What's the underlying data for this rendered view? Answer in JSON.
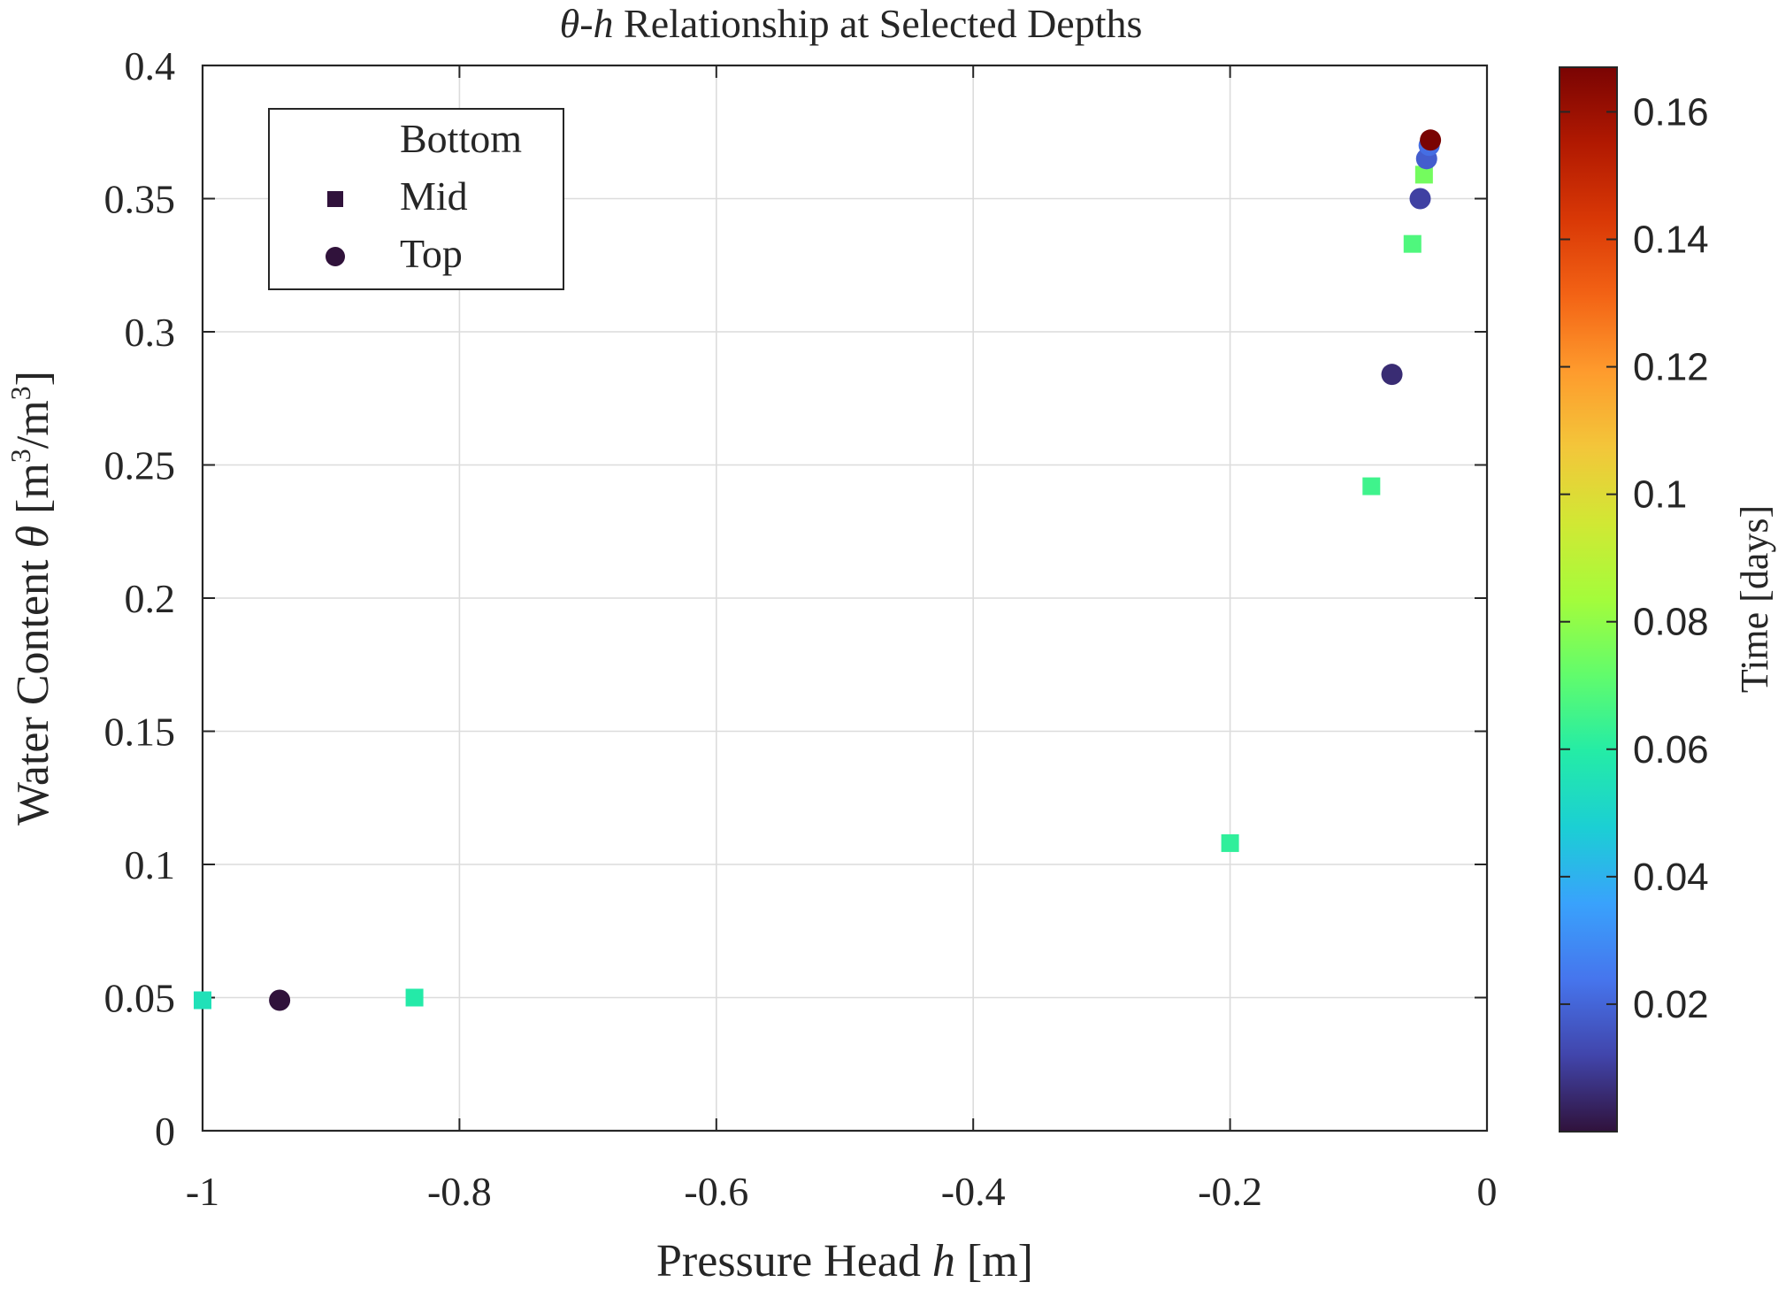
{
  "chart_data": {
    "type": "scatter",
    "title_parts": {
      "theta": "θ",
      "dash": "-",
      "h": "h",
      "rest": " Relationship at Selected Depths"
    },
    "xlabel": {
      "before": "Pressure Head ",
      "var": "h",
      "after": " [m]"
    },
    "ylabel": {
      "before": "Water Content ",
      "var": "θ",
      "unit_pre": " [m",
      "sup1": "3",
      "slash": "/m",
      "sup2": "3",
      "close": "]"
    },
    "xlim": [
      -1,
      0
    ],
    "ylim": [
      0,
      0.4
    ],
    "x_ticks": [
      -1,
      -0.8,
      -0.6,
      -0.4,
      -0.2,
      0
    ],
    "x_tick_labels": [
      "-1",
      "-0.8",
      "-0.6",
      "-0.4",
      "-0.2",
      "0"
    ],
    "y_ticks": [
      0,
      0.05,
      0.1,
      0.15,
      0.2,
      0.25,
      0.3,
      0.35,
      0.4
    ],
    "y_tick_labels": [
      "0",
      "0.05",
      "0.1",
      "0.15",
      "0.2",
      "0.25",
      "0.3",
      "0.35",
      "0.4"
    ],
    "grid": true,
    "legend": {
      "placement": "top-left",
      "entries": [
        {
          "label": "Bottom",
          "marker": "none"
        },
        {
          "label": "Mid",
          "marker": "square"
        },
        {
          "label": "Top",
          "marker": "circle"
        }
      ],
      "marker_color": "#30123b"
    },
    "colorbar": {
      "label": "Time [days]",
      "colormap": "turbo",
      "range": [
        0,
        0.167
      ],
      "ticks": [
        0.02,
        0.04,
        0.06,
        0.08,
        0.1,
        0.12,
        0.14,
        0.16
      ],
      "tick_labels": [
        "0.02",
        "0.04",
        "0.06",
        "0.08",
        "0.1",
        "0.12",
        "0.14",
        "0.16"
      ],
      "stops": [
        "#30123b",
        "#4145ab",
        "#4675ed",
        "#39a2fc",
        "#1bcfd4",
        "#24eca6",
        "#61fc6c",
        "#a4fc3b",
        "#d1e834",
        "#f3c63a",
        "#fe9b2d",
        "#f36315",
        "#d93806",
        "#b11901",
        "#7a0403"
      ]
    },
    "series": [
      {
        "name": "Mid",
        "marker": "square",
        "points": [
          {
            "x": -1.0,
            "y": 0.049,
            "t": 0.055
          },
          {
            "x": -0.835,
            "y": 0.05,
            "t": 0.059
          },
          {
            "x": -0.2,
            "y": 0.108,
            "t": 0.062
          },
          {
            "x": -0.09,
            "y": 0.242,
            "t": 0.065
          },
          {
            "x": -0.058,
            "y": 0.333,
            "t": 0.068
          },
          {
            "x": -0.049,
            "y": 0.359,
            "t": 0.075
          }
        ]
      },
      {
        "name": "Top",
        "marker": "circle",
        "points": [
          {
            "x": -0.94,
            "y": 0.049,
            "t": 0.0
          },
          {
            "x": -0.074,
            "y": 0.284,
            "t": 0.006
          },
          {
            "x": -0.052,
            "y": 0.35,
            "t": 0.011
          },
          {
            "x": -0.047,
            "y": 0.365,
            "t": 0.018
          },
          {
            "x": -0.045,
            "y": 0.37,
            "t": 0.022
          },
          {
            "x": -0.044,
            "y": 0.372,
            "t": 0.167
          }
        ]
      }
    ]
  }
}
